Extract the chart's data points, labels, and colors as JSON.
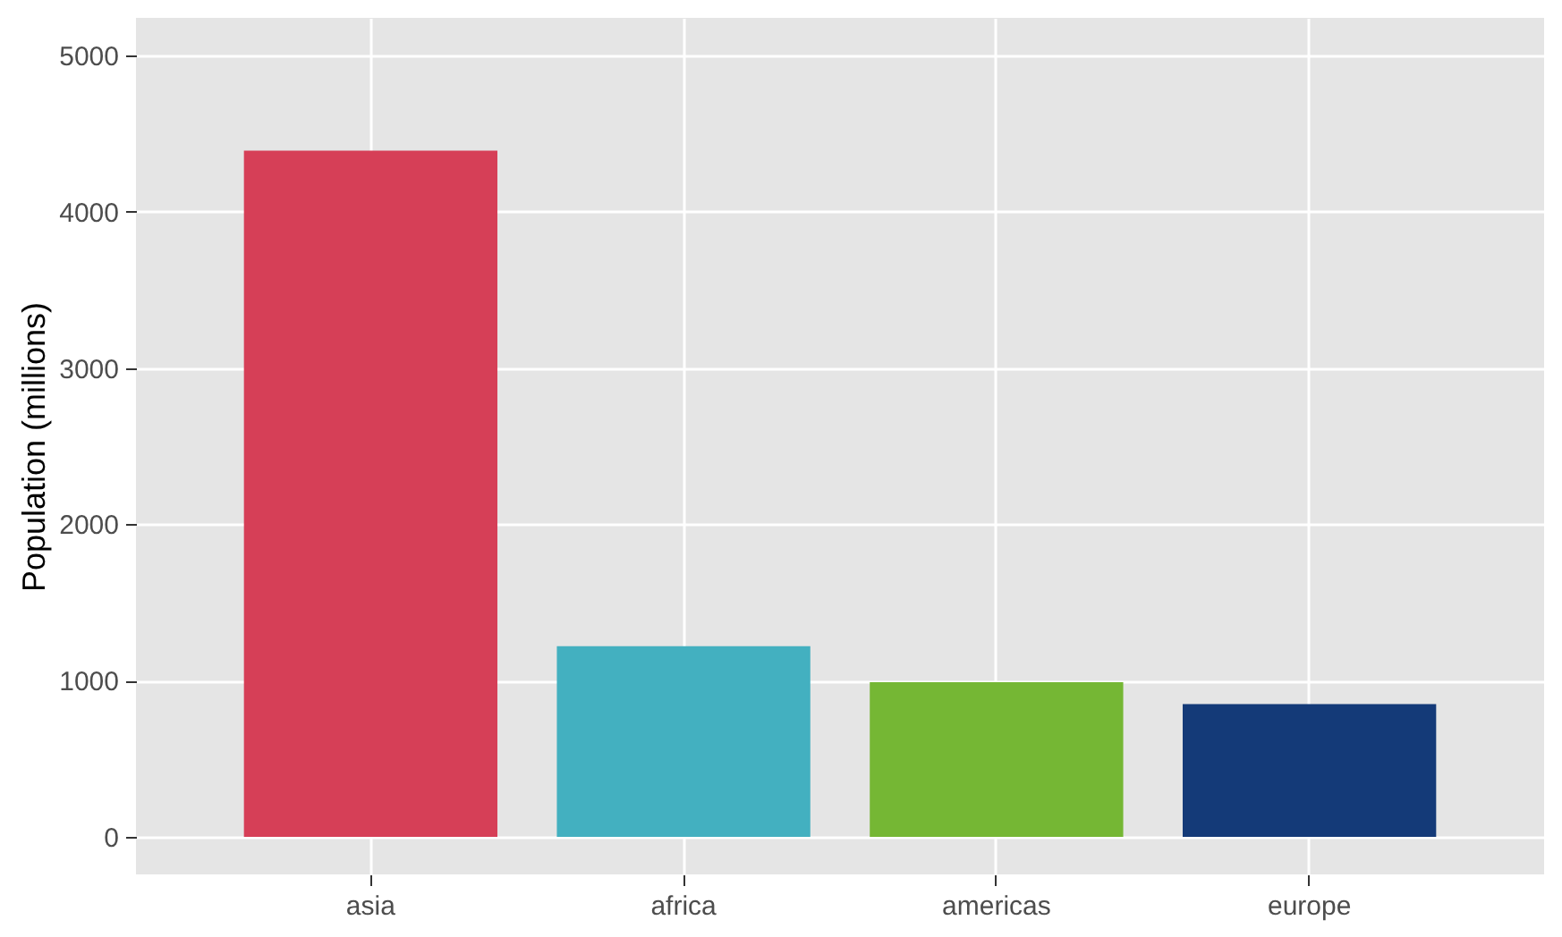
{
  "chart_data": {
    "type": "bar",
    "ylabel": "Population (millions)",
    "categories": [
      "asia",
      "africa",
      "americas",
      "europe"
    ],
    "values": [
      4390,
      1220,
      990,
      850
    ],
    "colors": [
      "#d63f57",
      "#43b0c0",
      "#75b734",
      "#143a78"
    ],
    "ylim": [
      -240,
      5240
    ],
    "yticks": [
      0,
      1000,
      2000,
      3000,
      4000,
      5000
    ],
    "grid": true,
    "legend": false
  }
}
